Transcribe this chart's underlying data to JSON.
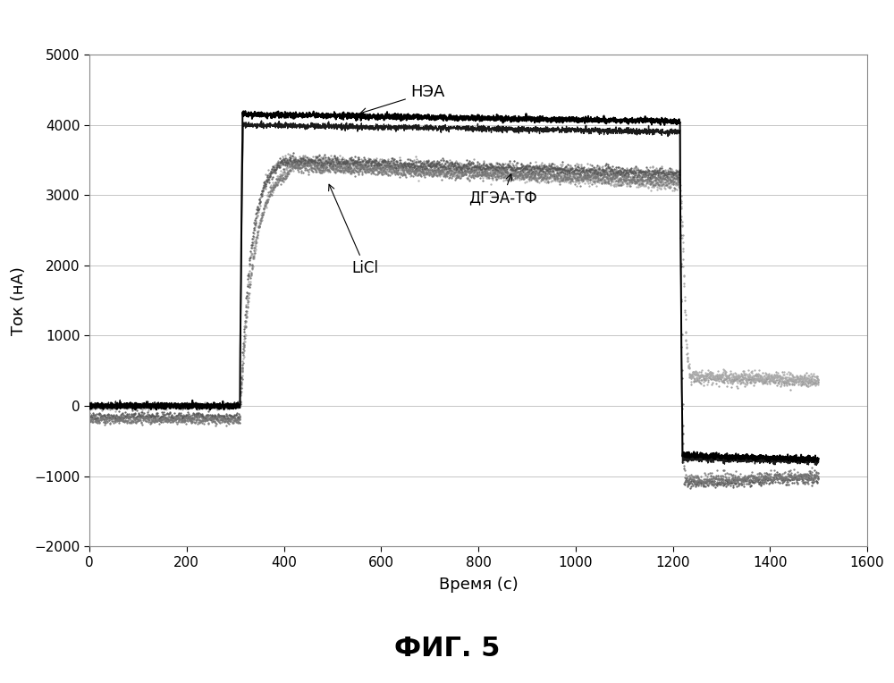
{
  "title": "",
  "xlabel": "Время (с)",
  "ylabel": "Ток (нА)",
  "xlim": [
    0,
    1600
  ],
  "ylim": [
    -2000,
    5000
  ],
  "xticks": [
    0,
    200,
    400,
    600,
    800,
    1000,
    1200,
    1400,
    1600
  ],
  "yticks": [
    -2000,
    -1000,
    0,
    1000,
    2000,
    3000,
    4000,
    5000
  ],
  "fig_caption": "ФИГ. 5",
  "annotation_NEA": "НЭА",
  "annotation_DGEA": "ДГЭА-ТФ",
  "annotation_LiCl": "LiCl",
  "t_on": 310,
  "t_off": 1215,
  "background_color": "#ffffff",
  "grid_color": "#bbbbbb"
}
